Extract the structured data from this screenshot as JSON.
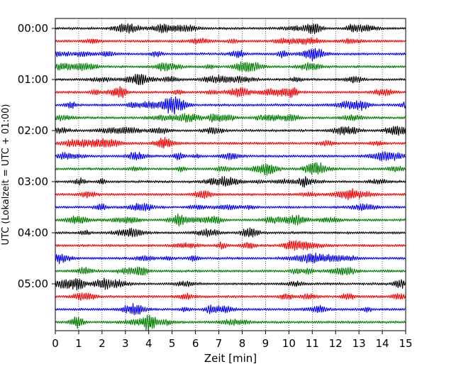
{
  "chart_data": {
    "type": "line",
    "title": "",
    "xlabel": "Zeit  [min]",
    "ylabel": "UTC (Lokalzeit = UTC + 01:00)",
    "xlim": [
      0,
      15
    ],
    "x_ticks": [
      "0",
      "1",
      "2",
      "3",
      "4",
      "5",
      "6",
      "7",
      "8",
      "9",
      "10",
      "11",
      "12",
      "13",
      "14",
      "15"
    ],
    "y_ticks": [
      "00:00",
      "01:00",
      "02:00",
      "03:00",
      "04:00",
      "05:00"
    ],
    "ylim_hours": [
      0,
      6
    ],
    "trace_interval_min": 15,
    "grid_x": true,
    "line_colors": [
      "#000000",
      "#ff0000",
      "#0000ff",
      "#007f00"
    ],
    "traces": [
      {
        "start": "00:00",
        "color": "#000000"
      },
      {
        "start": "00:15",
        "color": "#ff0000"
      },
      {
        "start": "00:30",
        "color": "#0000ff"
      },
      {
        "start": "00:45",
        "color": "#007f00"
      },
      {
        "start": "01:00",
        "color": "#000000"
      },
      {
        "start": "01:15",
        "color": "#ff0000"
      },
      {
        "start": "01:30",
        "color": "#0000ff"
      },
      {
        "start": "01:45",
        "color": "#007f00"
      },
      {
        "start": "02:00",
        "color": "#000000"
      },
      {
        "start": "02:15",
        "color": "#ff0000"
      },
      {
        "start": "02:30",
        "color": "#0000ff"
      },
      {
        "start": "02:45",
        "color": "#007f00"
      },
      {
        "start": "03:00",
        "color": "#000000"
      },
      {
        "start": "03:15",
        "color": "#ff0000"
      },
      {
        "start": "03:30",
        "color": "#0000ff"
      },
      {
        "start": "03:45",
        "color": "#007f00"
      },
      {
        "start": "04:00",
        "color": "#000000"
      },
      {
        "start": "04:15",
        "color": "#ff0000"
      },
      {
        "start": "04:30",
        "color": "#0000ff"
      },
      {
        "start": "04:45",
        "color": "#007f00"
      },
      {
        "start": "05:00",
        "color": "#000000"
      },
      {
        "start": "05:15",
        "color": "#ff0000"
      },
      {
        "start": "05:30",
        "color": "#0000ff"
      },
      {
        "start": "05:45",
        "color": "#007f00"
      }
    ]
  }
}
